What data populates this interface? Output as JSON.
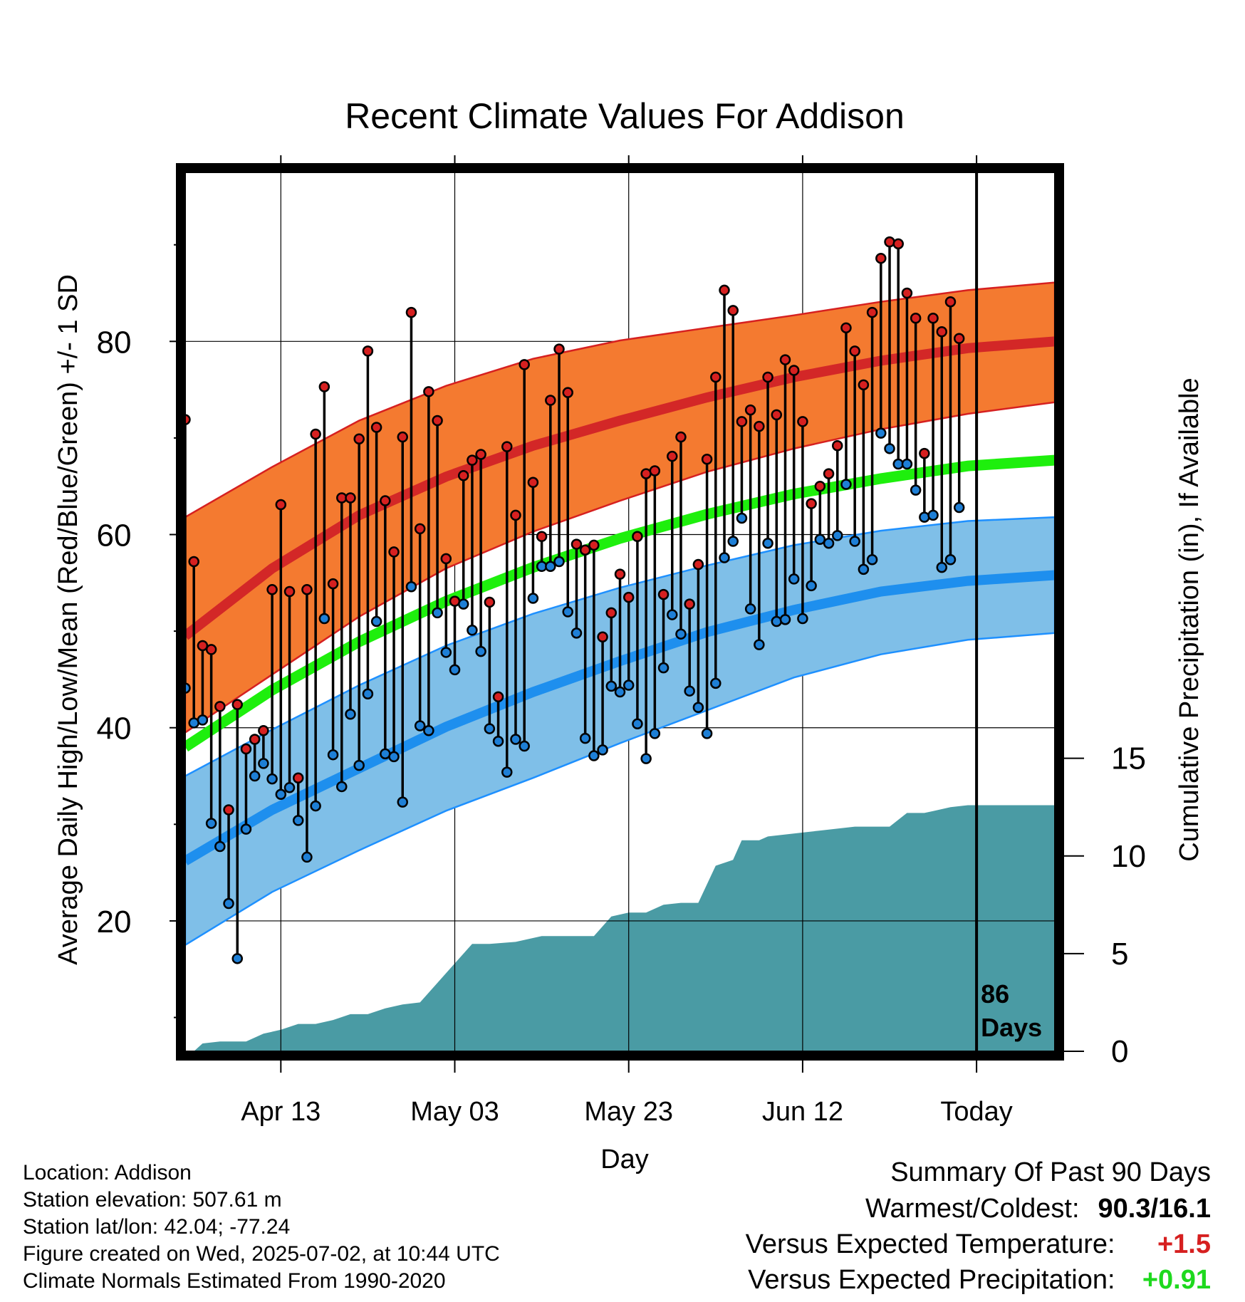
{
  "chart_data": {
    "type": "line",
    "title": "Recent Climate Values For Addison",
    "xlabel": "Day",
    "ylabel": "Average Daily High/Low/Mean (Red/Blue/Green) +/- 1 SD",
    "y2label": "Cumulative Precipitation (in), If Available",
    "x_range": [
      "2025-04-02",
      "2025-07-11"
    ],
    "x_ticks": [
      {
        "date": "2025-04-13",
        "label": "Apr 13"
      },
      {
        "date": "2025-05-03",
        "label": "May 03"
      },
      {
        "date": "2025-05-23",
        "label": "May 23"
      },
      {
        "date": "2025-06-12",
        "label": "Jun 12"
      },
      {
        "date": "2025-07-02",
        "label": "Today"
      }
    ],
    "today": "2025-07-02",
    "today_label": [
      "86",
      "Days"
    ],
    "ylim": [
      6.5,
      97.5
    ],
    "y_ticks": [
      20,
      40,
      60,
      80
    ],
    "y_minor_ticks": [
      10,
      30,
      50,
      70,
      90
    ],
    "y2lim": [
      0,
      45
    ],
    "y2_ticks": [
      0,
      5,
      10,
      15
    ],
    "grid": true,
    "normals": {
      "dates": [
        "2025-04-02",
        "2025-04-12",
        "2025-04-22",
        "2025-05-02",
        "2025-05-12",
        "2025-05-22",
        "2025-06-01",
        "2025-06-11",
        "2025-06-21",
        "2025-07-01",
        "2025-07-11"
      ],
      "high_mean": [
        49.5,
        56.5,
        62.0,
        66.0,
        69.2,
        71.8,
        74.2,
        76.3,
        78.0,
        79.3,
        80.0
      ],
      "high_upper": [
        61.8,
        67.0,
        71.8,
        75.4,
        78.2,
        80.1,
        81.4,
        82.7,
        84.1,
        85.3,
        86.1
      ],
      "high_lower": [
        39.5,
        45.5,
        51.5,
        56.5,
        60.3,
        63.5,
        66.5,
        68.9,
        70.9,
        72.5,
        73.7
      ],
      "mean": [
        38.0,
        43.9,
        48.9,
        53.1,
        56.6,
        59.6,
        62.1,
        64.2,
        65.8,
        67.1,
        67.7
      ],
      "low_mean": [
        26.2,
        31.5,
        35.8,
        40.1,
        43.7,
        46.9,
        49.9,
        52.2,
        54.1,
        55.2,
        55.8
      ],
      "low_upper": [
        35.0,
        39.8,
        44.4,
        48.5,
        51.8,
        54.5,
        56.8,
        58.9,
        60.4,
        61.4,
        61.8
      ],
      "low_lower": [
        17.5,
        23.0,
        27.3,
        31.4,
        34.8,
        38.4,
        41.8,
        45.2,
        47.6,
        49.1,
        49.8
      ]
    },
    "observations": {
      "start_date": "2025-04-02",
      "highs": [
        71.9,
        57.2,
        48.5,
        48.1,
        42.2,
        31.5,
        42.4,
        37.8,
        38.8,
        39.7,
        54.3,
        63.1,
        54.1,
        34.8,
        54.3,
        70.4,
        75.3,
        54.9,
        63.8,
        63.8,
        69.9,
        79.0,
        71.1,
        63.5,
        58.2,
        70.1,
        83.0,
        60.6,
        74.8,
        71.8,
        57.5,
        53.1,
        66.1,
        67.7,
        68.3,
        53.0,
        43.2,
        69.1,
        62.0,
        77.6,
        65.4,
        59.8,
        73.9,
        79.2,
        74.7,
        59.0,
        58.4,
        58.9,
        49.4,
        51.9,
        55.9,
        53.5,
        59.8,
        66.3,
        66.6,
        53.8,
        68.1,
        70.1,
        52.8,
        56.9,
        67.8,
        76.3,
        85.3,
        83.2,
        71.7,
        72.9,
        71.2,
        76.3,
        72.4,
        78.1,
        77.0,
        71.7,
        63.2,
        65.0,
        66.3,
        69.2,
        81.4,
        79.0,
        75.5,
        83.0,
        88.6,
        90.3,
        90.1,
        85.0,
        82.4,
        68.4,
        82.4,
        81.0,
        84.1,
        80.3
      ],
      "lows": [
        44.1,
        40.5,
        40.8,
        30.1,
        27.7,
        21.8,
        16.1,
        29.5,
        35.0,
        36.3,
        34.7,
        33.1,
        33.8,
        30.4,
        26.6,
        31.9,
        51.3,
        37.2,
        33.9,
        41.4,
        36.1,
        43.5,
        51.0,
        37.3,
        37.0,
        32.3,
        54.6,
        40.2,
        39.7,
        51.9,
        47.8,
        46.0,
        52.8,
        50.1,
        47.9,
        39.9,
        38.6,
        35.4,
        38.8,
        38.1,
        53.4,
        56.7,
        56.7,
        57.2,
        52.0,
        49.8,
        38.9,
        37.1,
        37.7,
        44.3,
        43.7,
        44.4,
        40.4,
        36.8,
        39.4,
        46.2,
        51.7,
        49.7,
        43.8,
        42.1,
        39.4,
        44.6,
        57.6,
        59.3,
        61.7,
        52.3,
        48.6,
        59.1,
        51.0,
        51.2,
        55.4,
        51.3,
        54.7,
        59.5,
        59.1,
        59.9,
        65.2,
        59.3,
        56.4,
        57.4,
        70.5,
        68.9,
        67.3,
        67.3,
        64.6,
        61.8,
        62.0,
        56.6,
        57.4,
        62.8
      ]
    },
    "precip_cumulative": {
      "dates": [
        "2025-04-03",
        "2025-04-04",
        "2025-04-06",
        "2025-04-09",
        "2025-04-11",
        "2025-04-13",
        "2025-04-15",
        "2025-04-17",
        "2025-04-19",
        "2025-04-21",
        "2025-04-23",
        "2025-04-25",
        "2025-04-27",
        "2025-04-29",
        "2025-05-01",
        "2025-05-03",
        "2025-05-05",
        "2025-05-07",
        "2025-05-10",
        "2025-05-13",
        "2025-05-16",
        "2025-05-19",
        "2025-05-21",
        "2025-05-23",
        "2025-05-25",
        "2025-05-27",
        "2025-05-29",
        "2025-05-31",
        "2025-06-02",
        "2025-06-04",
        "2025-06-05",
        "2025-06-07",
        "2025-06-08",
        "2025-06-10",
        "2025-06-12",
        "2025-06-14",
        "2025-06-16",
        "2025-06-18",
        "2025-06-20",
        "2025-06-22",
        "2025-06-24",
        "2025-06-26",
        "2025-06-27",
        "2025-06-29",
        "2025-07-01",
        "2025-07-03",
        "2025-07-11"
      ],
      "values": [
        0.0,
        0.4,
        0.5,
        0.5,
        0.9,
        1.1,
        1.4,
        1.4,
        1.6,
        1.9,
        1.9,
        2.2,
        2.4,
        2.5,
        3.5,
        4.5,
        5.5,
        5.5,
        5.6,
        5.9,
        5.9,
        5.9,
        6.9,
        7.1,
        7.1,
        7.5,
        7.6,
        7.6,
        9.5,
        9.8,
        10.8,
        10.8,
        11.0,
        11.1,
        11.2,
        11.3,
        11.4,
        11.5,
        11.5,
        11.5,
        12.2,
        12.2,
        12.3,
        12.5,
        12.6,
        12.6,
        12.6
      ]
    },
    "colors": {
      "high_band": "#f47a30",
      "high_band_edge": "#d62020",
      "high_mean": "#d32727",
      "mean": "#1eef0d",
      "low_band": "#7fbfe8",
      "low_band_edge": "#1e90ff",
      "low_mean": "#1e8fee",
      "precip": "#4a9ba4",
      "high_point": "#d62020",
      "low_point": "#1e7fd6",
      "summary_temp": "#d62020",
      "summary_precip": "#1ed91e"
    }
  },
  "info": {
    "location": "Location: Addison",
    "elevation": "Station elevation: 507.61 m",
    "latlon": "Station lat/lon: 42.04; -77.24",
    "created": "Figure created on Wed, 2025-07-02, at 10:44 UTC",
    "normals": "Climate Normals Estimated From 1990-2020"
  },
  "summary": {
    "heading": "Summary Of Past 90 Days",
    "warmest_coldest_label": "Warmest/Coldest:",
    "warmest_coldest_value": "90.3/16.1",
    "temp_label": "Versus Expected Temperature:",
    "temp_value": "+1.5",
    "precip_label": "Versus Expected Precipitation:",
    "precip_value": "+0.91"
  }
}
